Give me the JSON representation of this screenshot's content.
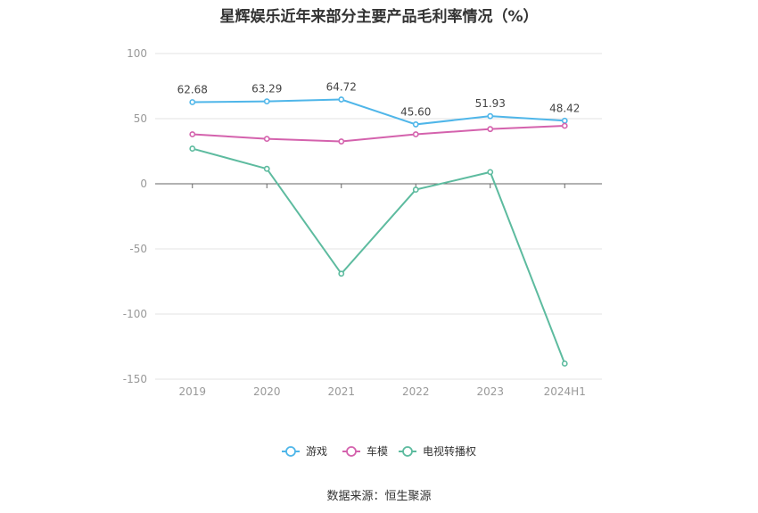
{
  "chart_data": {
    "type": "line",
    "title": "星辉娱乐近年来部分主要产品毛利率情况（%）",
    "categories": [
      "2019",
      "2020",
      "2021",
      "2022",
      "2023",
      "2024H1"
    ],
    "ylim": [
      -150,
      100
    ],
    "yticks": [
      100,
      50,
      0,
      -50,
      -100,
      -150
    ],
    "grid": true,
    "legend_position": "bottom",
    "series": [
      {
        "name": "游戏",
        "color": "#4fb6e9",
        "values": [
          62.68,
          63.29,
          64.72,
          45.6,
          51.93,
          48.42
        ],
        "labels": [
          "62.68",
          "63.29",
          "64.72",
          "45.60",
          "51.93",
          "48.42"
        ]
      },
      {
        "name": "车模",
        "color": "#d462ad",
        "values": [
          38,
          34.5,
          32.5,
          38,
          42,
          44.5
        ]
      },
      {
        "name": "电视转播权",
        "color": "#5dbb9f",
        "values": [
          27,
          11.5,
          -69,
          -4.5,
          9,
          -138
        ]
      }
    ]
  },
  "source": "数据来源：恒生聚源"
}
